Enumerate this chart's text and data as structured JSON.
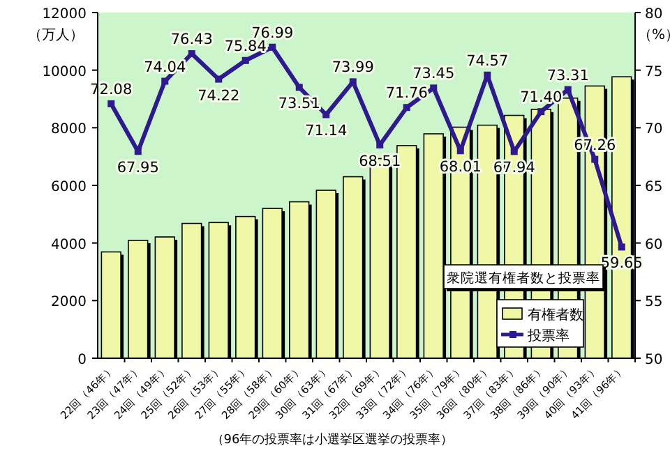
{
  "chart_data": {
    "type": "bar",
    "title": "衆院選有権者数と投票率",
    "categories": [
      "22回（46年）",
      "23回（47年）",
      "24回（49年）",
      "25回（52年）",
      "26回（53年）",
      "27回（55年）",
      "28回（58年）",
      "29回（60年）",
      "30回（63年）",
      "31回（67年）",
      "32回（69年）",
      "33回（72年）",
      "34回（76年）",
      "35回（79年）",
      "36回（80年）",
      "37回（83年）",
      "38回（86年）",
      "39回（90年）",
      "40回（93年）",
      "41回（96年）"
    ],
    "series": [
      {
        "name": "有権者数",
        "color": "#f0f8a8",
        "values": [
          3690,
          4090,
          4210,
          4680,
          4710,
          4920,
          5200,
          5430,
          5830,
          6300,
          6930,
          7380,
          7790,
          8020,
          8090,
          8430,
          8640,
          9030,
          9450,
          9770
        ]
      },
      {
        "name": "投票率",
        "type": "line",
        "axis": "y2",
        "color": "#2e1a8e",
        "marker": "square",
        "values": [
          72.08,
          67.95,
          74.04,
          76.43,
          74.22,
          75.84,
          76.99,
          73.51,
          71.14,
          73.99,
          68.51,
          71.76,
          73.45,
          68.01,
          74.57,
          67.94,
          71.4,
          73.31,
          67.26,
          59.65
        ],
        "value_labels": [
          "72.08",
          "67.95",
          "74.04",
          "76.43",
          "74.22",
          "75.84",
          "76.99",
          "73.51",
          "71.14",
          "73.99",
          "68.51",
          "71.76",
          "73.45",
          "68.01",
          "74.57",
          "67.94",
          "71.40",
          "73.31",
          "67.26",
          "59.65"
        ]
      }
    ],
    "ylim": [
      0,
      12000
    ],
    "yticks": [
      0,
      2000,
      4000,
      6000,
      8000,
      10000,
      12000
    ],
    "y2lim": [
      50,
      80
    ],
    "y2ticks": [
      50,
      55,
      60,
      65,
      70,
      75,
      80
    ],
    "ylabel": "（万人）",
    "y2label": "（%）",
    "annotations": [
      "（96年の投票率は小選挙区選挙の投票率）"
    ],
    "legend": "bottom right",
    "grid": false
  }
}
